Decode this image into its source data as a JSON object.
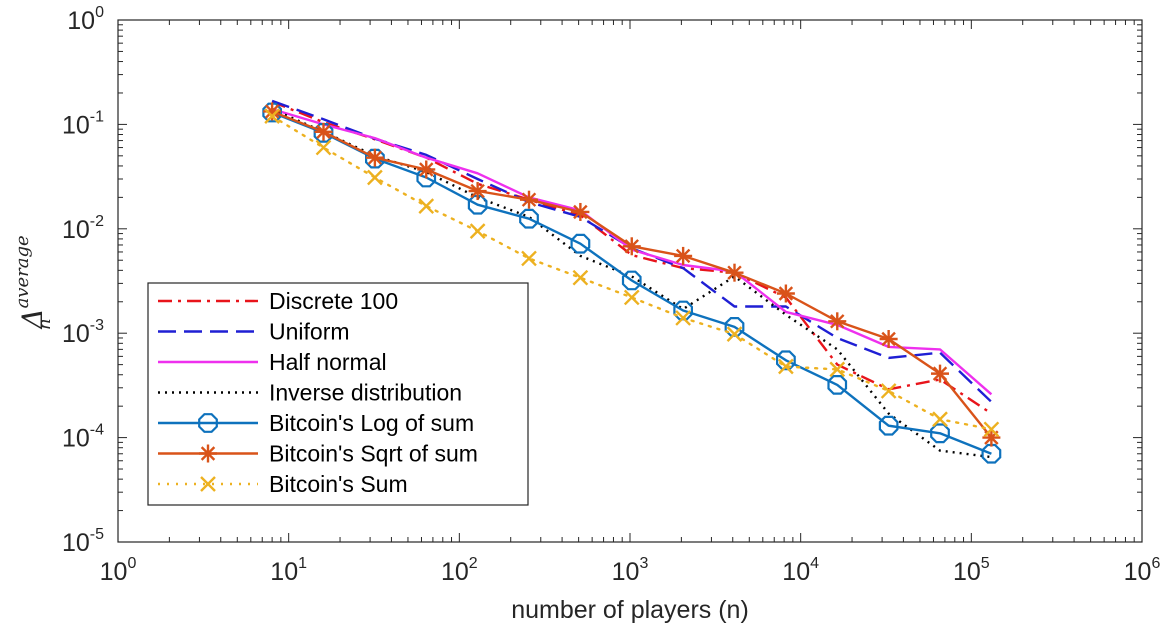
{
  "chart_data": {
    "type": "line",
    "xscale": "log",
    "yscale": "log",
    "xlim": [
      1,
      1000000
    ],
    "ylim": [
      1e-05,
      1
    ],
    "xlabel": "number of players (n)",
    "ylabel": {
      "main": "Δ",
      "sub": "n",
      "sup": "average"
    },
    "grid": false,
    "legend_position": "bottom-left",
    "x_ticks": [
      {
        "base": "10",
        "exp": "0",
        "value": 1
      },
      {
        "base": "10",
        "exp": "1",
        "value": 10
      },
      {
        "base": "10",
        "exp": "2",
        "value": 100
      },
      {
        "base": "10",
        "exp": "3",
        "value": 1000
      },
      {
        "base": "10",
        "exp": "4",
        "value": 10000
      },
      {
        "base": "10",
        "exp": "5",
        "value": 100000
      },
      {
        "base": "10",
        "exp": "6",
        "value": 1000000
      }
    ],
    "y_ticks": [
      {
        "base": "10",
        "exp": "-5",
        "value": 1e-05
      },
      {
        "base": "10",
        "exp": "-4",
        "value": 0.0001
      },
      {
        "base": "10",
        "exp": "-3",
        "value": 0.001
      },
      {
        "base": "10",
        "exp": "-2",
        "value": 0.01
      },
      {
        "base": "10",
        "exp": "-1",
        "value": 0.1
      },
      {
        "base": "10",
        "exp": "0",
        "value": 1
      }
    ],
    "x": [
      8,
      16,
      32,
      64,
      128,
      256,
      512,
      1024,
      2048,
      4096,
      8192,
      16384,
      32768,
      65536,
      131072
    ],
    "series": [
      {
        "name": "Discrete 100",
        "color": "#e8141b",
        "dash": "14,6,3,6",
        "marker": "none",
        "values": [
          0.165,
          0.105,
          0.072,
          0.048,
          0.027,
          0.019,
          0.0135,
          0.0056,
          0.0042,
          0.0038,
          0.0022,
          0.0005,
          0.00029,
          0.00036,
          0.00017
        ]
      },
      {
        "name": "Uniform",
        "color": "#1f1fd4",
        "dash": "18,8",
        "marker": "none",
        "values": [
          0.168,
          0.112,
          0.073,
          0.051,
          0.03,
          0.018,
          0.013,
          0.0065,
          0.0042,
          0.0018,
          0.0018,
          0.0009,
          0.00058,
          0.00065,
          0.00022
        ]
      },
      {
        "name": "Half normal",
        "color": "#ee30ee",
        "dash": "",
        "marker": "none",
        "values": [
          0.14,
          0.1,
          0.074,
          0.048,
          0.034,
          0.02,
          0.015,
          0.0063,
          0.0045,
          0.0039,
          0.0016,
          0.0012,
          0.00074,
          0.0007,
          0.00026
        ]
      },
      {
        "name": "Inverse distribution",
        "color": "#000000",
        "dash": "2,5",
        "marker": "none",
        "values": [
          0.14,
          0.085,
          0.05,
          0.035,
          0.02,
          0.013,
          0.0055,
          0.0035,
          0.0017,
          0.0035,
          0.0015,
          0.0007,
          0.00017,
          7.5e-05,
          6.5e-05
        ]
      },
      {
        "name": "Bitcoin's Log of sum",
        "color": "#0e72bd",
        "dash": "",
        "marker": "octagon",
        "values": [
          0.13,
          0.083,
          0.047,
          0.031,
          0.017,
          0.0125,
          0.0072,
          0.0032,
          0.00165,
          0.00115,
          0.00055,
          0.00032,
          0.00013,
          0.00011,
          7e-05
        ]
      },
      {
        "name": "Bitcoin's Sqrt of sum",
        "color": "#d95319",
        "dash": "",
        "marker": "asterisk",
        "values": [
          0.133,
          0.085,
          0.048,
          0.037,
          0.023,
          0.019,
          0.0145,
          0.0068,
          0.0055,
          0.0038,
          0.0024,
          0.0013,
          0.00088,
          0.00041,
          0.0001
        ]
      },
      {
        "name": "Bitcoin's Sum",
        "color": "#edb120",
        "dash": "2,7",
        "marker": "x",
        "values": [
          0.12,
          0.06,
          0.031,
          0.0165,
          0.0095,
          0.0052,
          0.0034,
          0.0022,
          0.0014,
          0.00098,
          0.00048,
          0.00045,
          0.00028,
          0.00015,
          0.00012
        ]
      }
    ]
  }
}
